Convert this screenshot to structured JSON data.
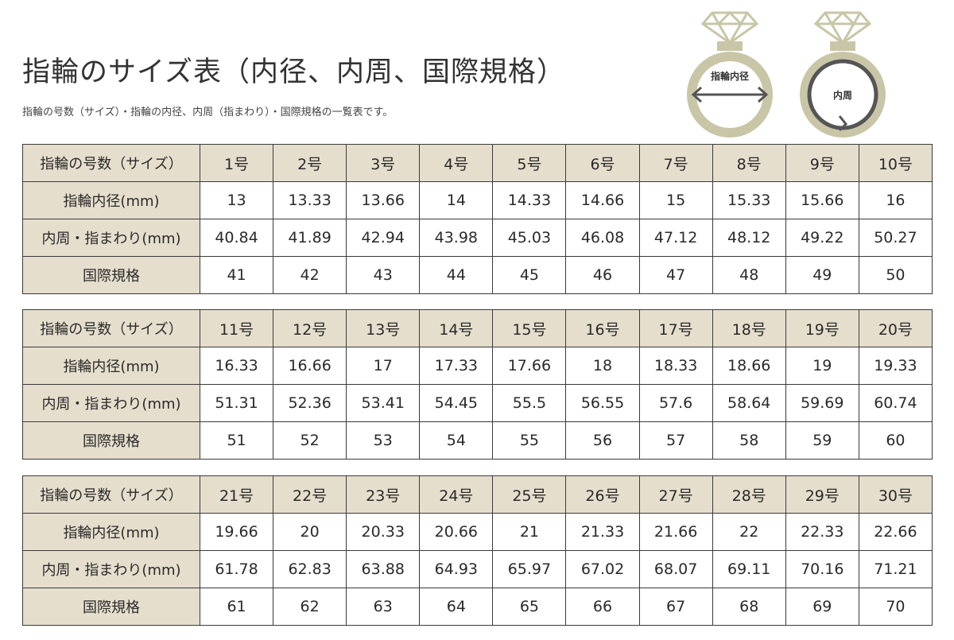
{
  "title": "指輪のサイズ表（内径、内周、国際規格）",
  "subtitle": "指輪の号数（サイズ）・指輪の内径、内周（指まわり）・国際規格の一覧表です。",
  "illustrations": {
    "diameter_label": "指輪内径",
    "circumference_label": "内周",
    "ring_color": "#c9c6a8"
  },
  "row_labels": [
    "指輪の号数（サイズ）",
    "指輪内径(mm)",
    "内周・指まわり(mm)",
    "国際規格"
  ],
  "tables": [
    {
      "sizes": [
        "1号",
        "2号",
        "3号",
        "4号",
        "5号",
        "6号",
        "7号",
        "8号",
        "9号",
        "10号"
      ],
      "inner_diameter": [
        "13",
        "13.33",
        "13.66",
        "14",
        "14.33",
        "14.66",
        "15",
        "15.33",
        "15.66",
        "16"
      ],
      "circumference": [
        "40.84",
        "41.89",
        "42.94",
        "43.98",
        "45.03",
        "46.08",
        "47.12",
        "48.12",
        "49.22",
        "50.27"
      ],
      "international": [
        "41",
        "42",
        "43",
        "44",
        "45",
        "46",
        "47",
        "48",
        "49",
        "50"
      ]
    },
    {
      "sizes": [
        "11号",
        "12号",
        "13号",
        "14号",
        "15号",
        "16号",
        "17号",
        "18号",
        "19号",
        "20号"
      ],
      "inner_diameter": [
        "16.33",
        "16.66",
        "17",
        "17.33",
        "17.66",
        "18",
        "18.33",
        "18.66",
        "19",
        "19.33"
      ],
      "circumference": [
        "51.31",
        "52.36",
        "53.41",
        "54.45",
        "55.5",
        "56.55",
        "57.6",
        "58.64",
        "59.69",
        "60.74"
      ],
      "international": [
        "51",
        "52",
        "53",
        "54",
        "55",
        "56",
        "57",
        "58",
        "59",
        "60"
      ]
    },
    {
      "sizes": [
        "21号",
        "22号",
        "23号",
        "24号",
        "25号",
        "26号",
        "27号",
        "28号",
        "29号",
        "30号"
      ],
      "inner_diameter": [
        "19.66",
        "20",
        "20.33",
        "20.66",
        "21",
        "21.33",
        "21.66",
        "22",
        "22.33",
        "22.66"
      ],
      "circumference": [
        "61.78",
        "62.83",
        "63.88",
        "64.93",
        "65.97",
        "67.02",
        "68.07",
        "69.11",
        "70.16",
        "71.21"
      ],
      "international": [
        "61",
        "62",
        "63",
        "64",
        "65",
        "66",
        "67",
        "68",
        "69",
        "70"
      ]
    }
  ]
}
